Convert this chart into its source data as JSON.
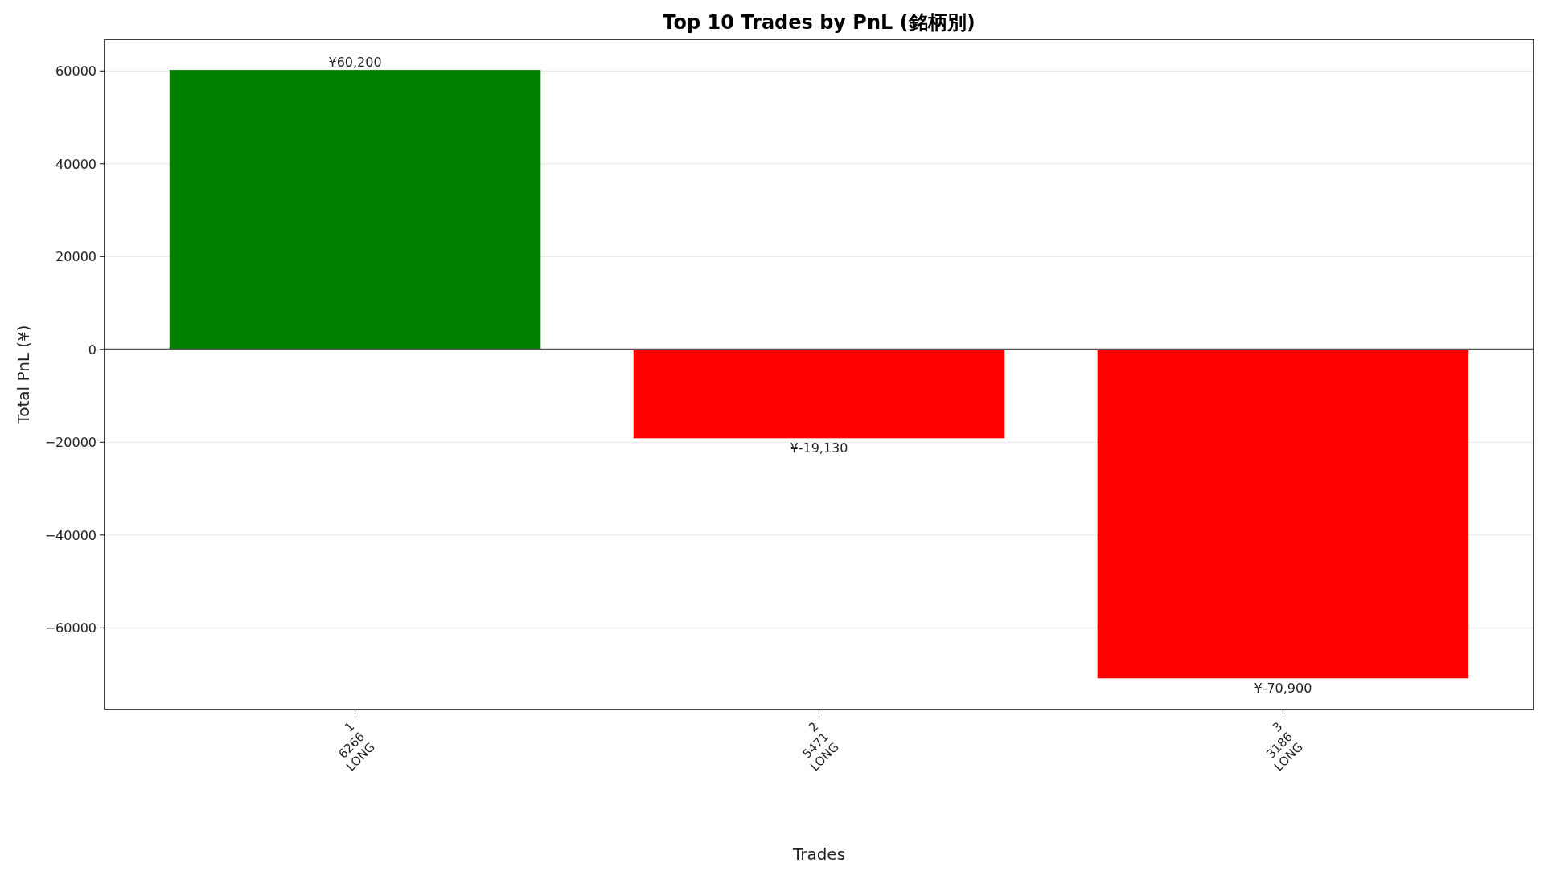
{
  "chart_data": {
    "type": "bar",
    "title": "Top 10 Trades by PnL (銘柄別)",
    "xlabel": "Trades",
    "ylabel": "Total PnL (¥)",
    "categories": [
      "1\n6266\nLONG",
      "2\n5471\nLONG",
      "3\n3186\nLONG"
    ],
    "values": [
      60200,
      -19130,
      -70900
    ],
    "colors": [
      "#008000",
      "#ff0000",
      "#ff0000"
    ],
    "value_labels": [
      "¥60,200",
      "¥-19,130",
      "¥-70,900"
    ],
    "ylim": [
      -77600,
      66800
    ],
    "yticks": [
      {
        "value": -60000,
        "label": "−60000"
      },
      {
        "value": -40000,
        "label": "−40000"
      },
      {
        "value": -20000,
        "label": "−20000"
      },
      0,
      20000,
      40000,
      60000
    ],
    "ref_lines": [
      {
        "axis": "y",
        "value": 0,
        "color": "#555555"
      }
    ],
    "grid": "y"
  }
}
